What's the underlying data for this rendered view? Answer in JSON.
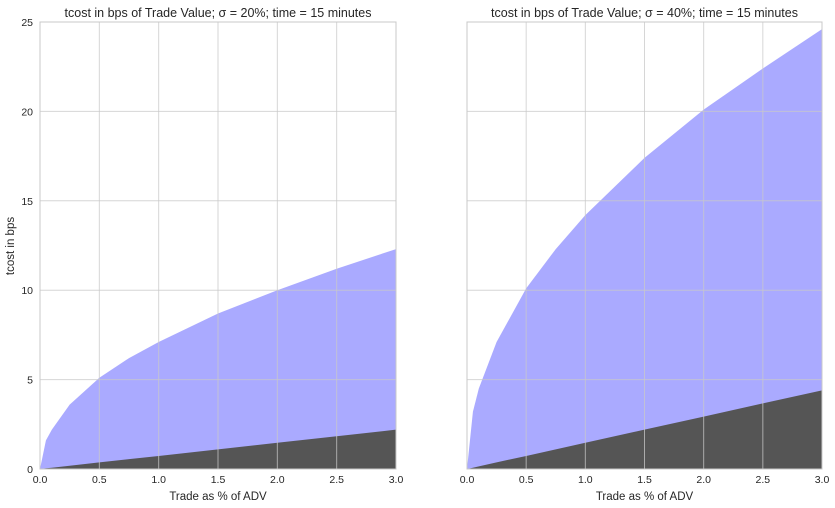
{
  "figure": {
    "shared_ylabel": "tcost in bps"
  },
  "colors": {
    "total_area": "#aaaaff",
    "lower_area": "#555555",
    "grid": "#c8c8c8",
    "background": "#ffffff",
    "text": "#262626"
  },
  "chart_data": [
    {
      "type": "area",
      "title": "tcost in bps of Trade Value; σ = 20%; time = 15 minutes",
      "xlabel": "Trade as % of ADV",
      "ylabel": "tcost in bps",
      "xlim": [
        0.0,
        3.0
      ],
      "ylim": [
        0,
        25
      ],
      "xticks": [
        "0.0",
        "0.5",
        "1.0",
        "1.5",
        "2.0",
        "2.5",
        "3.0"
      ],
      "yticks": [
        "0",
        "5",
        "10",
        "15",
        "20",
        "25"
      ],
      "grid": true,
      "stacked": false,
      "x": [
        0.0,
        0.05,
        0.1,
        0.25,
        0.5,
        0.75,
        1.0,
        1.5,
        2.0,
        2.5,
        3.0
      ],
      "series": [
        {
          "values": [
            0.0,
            1.6,
            2.2,
            3.6,
            5.1,
            6.2,
            7.1,
            8.7,
            10.0,
            11.2,
            12.3
          ]
        },
        {
          "values": [
            0.0,
            0.04,
            0.07,
            0.18,
            0.37,
            0.55,
            0.73,
            1.1,
            1.47,
            1.83,
            2.2
          ]
        }
      ]
    },
    {
      "type": "area",
      "title": "tcost in bps of Trade Value; σ = 40%; time = 15 minutes",
      "xlabel": "Trade as % of ADV",
      "ylabel": "",
      "xlim": [
        0.0,
        3.0
      ],
      "ylim": [
        0,
        25
      ],
      "xticks": [
        "0.0",
        "0.5",
        "1.0",
        "1.5",
        "2.0",
        "2.5",
        "3.0"
      ],
      "yticks": [
        "0",
        "5",
        "10",
        "15",
        "20",
        "25"
      ],
      "show_ytick_labels": false,
      "grid": true,
      "stacked": false,
      "x": [
        0.0,
        0.05,
        0.1,
        0.25,
        0.5,
        0.75,
        1.0,
        1.5,
        2.0,
        2.5,
        3.0
      ],
      "series": [
        {
          "values": [
            0.0,
            3.2,
            4.5,
            7.1,
            10.1,
            12.3,
            14.2,
            17.4,
            20.1,
            22.4,
            24.6
          ]
        },
        {
          "values": [
            0.0,
            0.07,
            0.15,
            0.37,
            0.73,
            1.1,
            1.47,
            2.2,
            2.93,
            3.67,
            4.4
          ]
        }
      ]
    }
  ]
}
